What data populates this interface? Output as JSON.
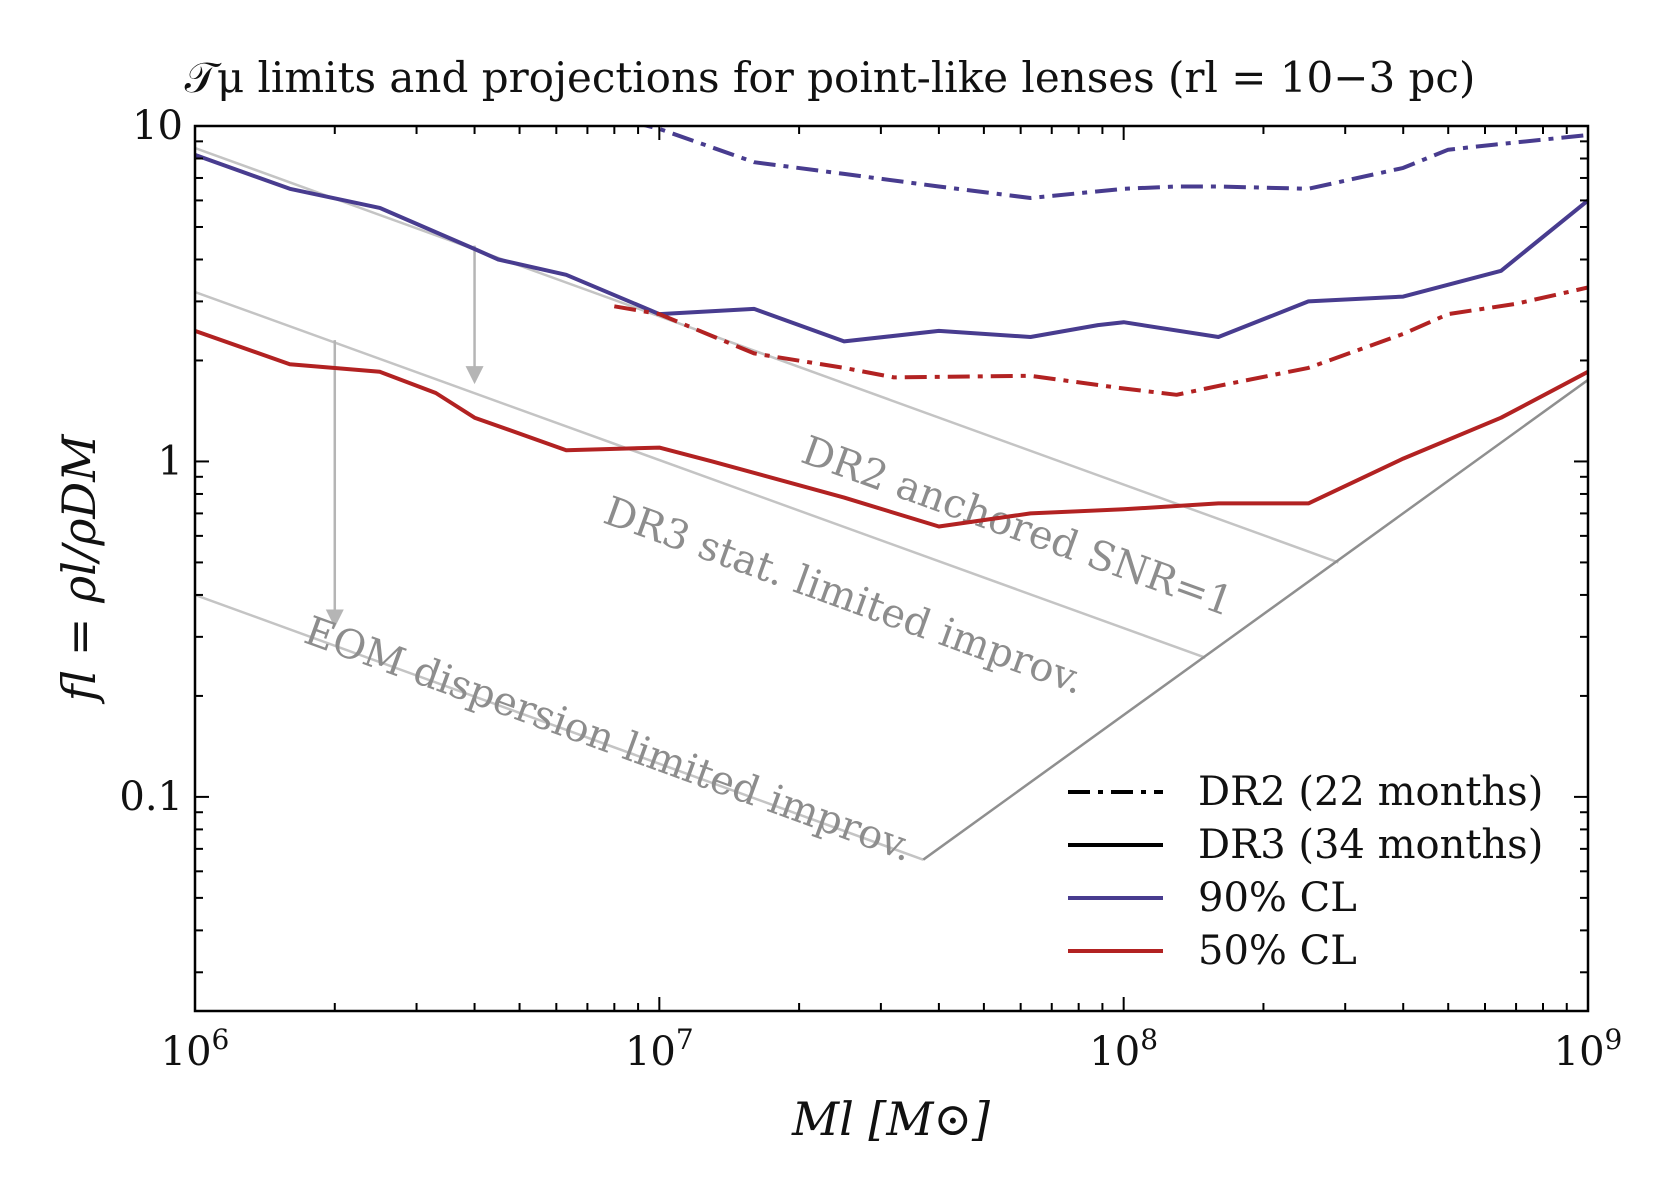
{
  "chart_data": {
    "type": "line",
    "title": "𝒯μ limits and projections for point-like lenses (rl = 10−3 pc)",
    "xlabel": "Ml [M⊙]",
    "ylabel": "fl = ρl/ρDM",
    "xscale": "log",
    "yscale": "log",
    "xlim": [
      1000000,
      1000000000
    ],
    "ylim": [
      0.023,
      10
    ],
    "x_ticks": [
      {
        "value": 1000000,
        "base": "10",
        "exp": "6"
      },
      {
        "value": 10000000,
        "base": "10",
        "exp": "7"
      },
      {
        "value": 100000000,
        "base": "10",
        "exp": "8"
      },
      {
        "value": 1000000000,
        "base": "10",
        "exp": "9"
      }
    ],
    "y_ticks": [
      {
        "value": 10,
        "label": "10"
      },
      {
        "value": 1,
        "label": "1"
      },
      {
        "value": 0.1,
        "label": "0.1"
      }
    ],
    "colors": {
      "cl90": "#483c8f",
      "cl50": "#b22222",
      "projection": "#c4c4c4",
      "dr2_floor": "#8f8f8f",
      "arrow": "#b5b5b5",
      "annotation": "#8d8d8d",
      "axis": "#000000"
    },
    "series": [
      {
        "name": "DR2 90% CL",
        "data_release": "DR2",
        "confidence": "90",
        "style": "dashdot",
        "color": "#483c8f",
        "x": [
          8700000,
          10000000,
          16000000,
          25000000,
          40000000,
          63000000,
          100000000,
          130000000,
          160000000,
          250000000,
          400000000,
          500000000,
          630000000,
          1000000000
        ],
        "y": [
          10.3,
          9.8,
          7.8,
          7.2,
          6.6,
          6.1,
          6.5,
          6.6,
          6.6,
          6.5,
          7.5,
          8.5,
          8.8,
          9.4
        ]
      },
      {
        "name": "DR3 90% CL",
        "data_release": "DR3",
        "confidence": "90",
        "style": "solid",
        "color": "#483c8f",
        "x": [
          1000000,
          1600000,
          2500000,
          4000000,
          4500000,
          6300000,
          10000000,
          16000000,
          25000000,
          40000000,
          63000000,
          88000000,
          100000000,
          160000000,
          250000000,
          400000000,
          650000000,
          1000000000
        ],
        "y": [
          8.2,
          6.5,
          5.7,
          4.3,
          4.0,
          3.6,
          2.75,
          2.85,
          2.28,
          2.45,
          2.35,
          2.55,
          2.6,
          2.35,
          3.0,
          3.1,
          3.7,
          6.0
        ]
      },
      {
        "name": "DR2 50% CL",
        "data_release": "DR2",
        "confidence": "50",
        "style": "dashdot",
        "color": "#b22222",
        "x": [
          8000000,
          10000000,
          16000000,
          25000000,
          32000000,
          63000000,
          100000000,
          130000000,
          160000000,
          250000000,
          400000000,
          500000000,
          700000000,
          1000000000
        ],
        "y": [
          2.9,
          2.75,
          2.1,
          1.9,
          1.78,
          1.8,
          1.65,
          1.58,
          1.68,
          1.9,
          2.4,
          2.75,
          2.95,
          3.3
        ]
      },
      {
        "name": "DR3 50% CL",
        "data_release": "DR3",
        "confidence": "50",
        "style": "solid",
        "color": "#b22222",
        "x": [
          1000000,
          1600000,
          2500000,
          3300000,
          4000000,
          6300000,
          10000000,
          13000000,
          25000000,
          40000000,
          63000000,
          100000000,
          160000000,
          250000000,
          400000000,
          650000000,
          1000000000
        ],
        "y": [
          2.45,
          1.95,
          1.85,
          1.6,
          1.35,
          1.08,
          1.1,
          1.0,
          0.78,
          0.64,
          0.7,
          0.72,
          0.75,
          0.75,
          1.02,
          1.35,
          1.85
        ]
      }
    ],
    "projections": [
      {
        "name": "DR2 anchored SNR=1",
        "x": [
          1000000,
          290000000
        ],
        "y": [
          8.6,
          0.5
        ]
      },
      {
        "name": "DR3 stat. limited improv.",
        "x": [
          1000000,
          150000000
        ],
        "y": [
          3.2,
          0.26
        ]
      },
      {
        "name": "EOM dispersion limited improv.",
        "x": [
          1000000,
          37000000
        ],
        "y": [
          0.4,
          0.065
        ]
      }
    ],
    "floor_line": {
      "x": [
        37000000,
        1000000000
      ],
      "y": [
        0.065,
        1.75
      ]
    },
    "arrows": [
      {
        "x": 4000000,
        "from": 4.4,
        "to": 1.7
      },
      {
        "x": 2000000,
        "from": 2.3,
        "to": 0.32
      }
    ],
    "annotations": [
      {
        "text": "DR2 anchored SNR=1",
        "x": 20000000,
        "y": 1.0
      },
      {
        "text": "DR3 stat. limited improv.",
        "x": 7500000,
        "y": 0.66
      },
      {
        "text": "EOM dispersion limited improv.",
        "x": 1700000,
        "y": 0.29
      }
    ],
    "legend": {
      "placement": "lower-right",
      "entries": [
        {
          "label": "DR2 (22 months)",
          "style": "dashdot",
          "color": "#000000"
        },
        {
          "label": "DR3 (34 months)",
          "style": "solid",
          "color": "#000000"
        },
        {
          "label": "90% CL",
          "style": "solid",
          "color": "#483c8f"
        },
        {
          "label": "50% CL",
          "style": "solid",
          "color": "#b22222"
        }
      ]
    }
  }
}
